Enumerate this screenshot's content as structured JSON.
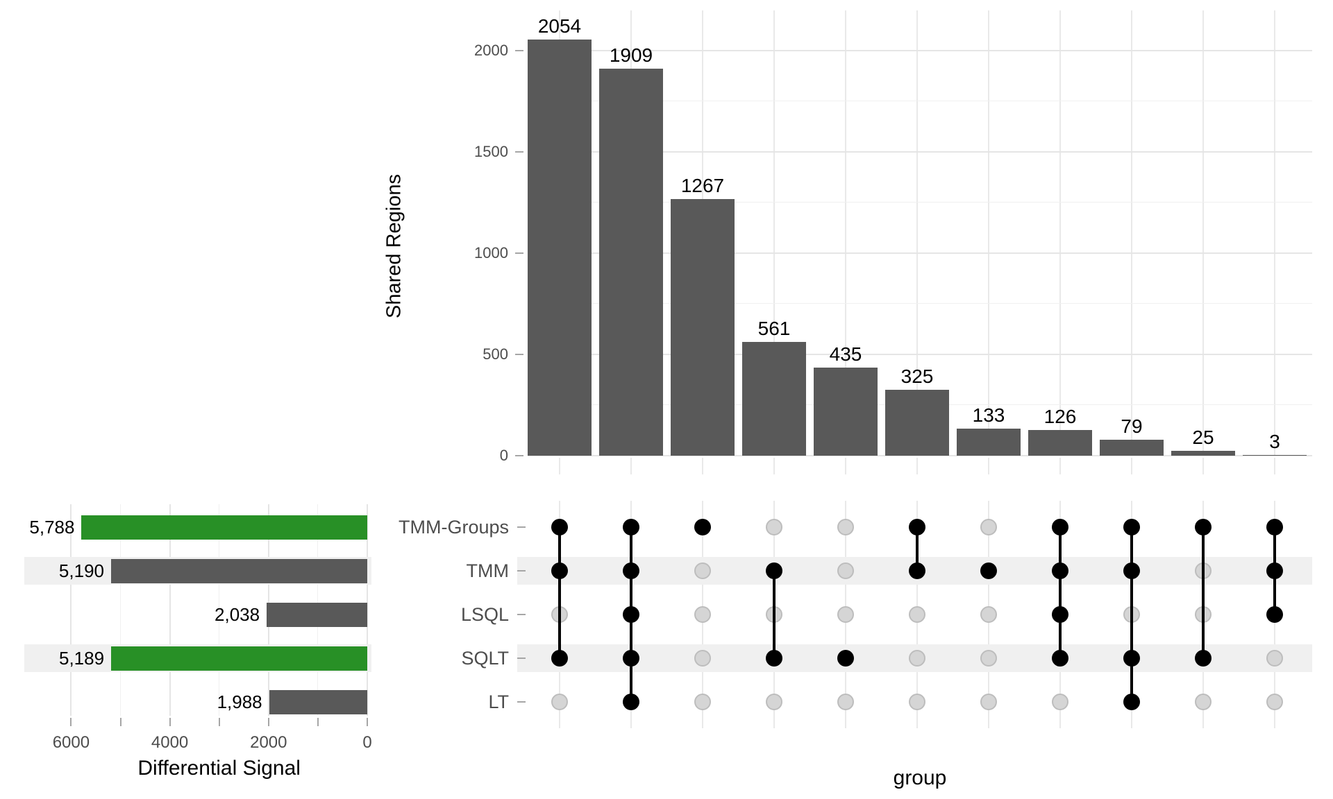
{
  "figure": {
    "kind": "UpSet plot of shared genomic regions between normalization groups"
  },
  "colors": {
    "bar_dark": "#595959",
    "bar_green": "#289026",
    "dot_on": "#000000",
    "dot_off": "#D5D5D5",
    "dot_off_border": "#BDBDBD",
    "stripe": "#F0F0F0",
    "grid_major": "#E5E5E5",
    "grid_minor": "#F0F0F0",
    "grid_column": "#E9E9E9",
    "tick_mark": "#A6A6A6",
    "axis_text": "#4D4D4D",
    "label_text": "#000000",
    "background": "#FFFFFF"
  },
  "chart_data": {
    "type": "bar",
    "subtype": "upset",
    "intersection_bars": {
      "ylabel": "Shared Regions",
      "xlabel": "group",
      "values": [
        2054,
        1909,
        1267,
        561,
        435,
        325,
        133,
        126,
        79,
        25,
        3
      ],
      "bar_labels": [
        "2054",
        "1909",
        "1267",
        "561",
        "435",
        "325",
        "133",
        "126",
        "79",
        "25",
        "3"
      ],
      "memberships": [
        [
          "TMM-Groups",
          "TMM",
          "SQLT"
        ],
        [
          "TMM-Groups",
          "TMM",
          "LSQL",
          "SQLT",
          "LT"
        ],
        [
          "TMM-Groups"
        ],
        [
          "TMM",
          "SQLT"
        ],
        [
          "SQLT"
        ],
        [
          "TMM-Groups",
          "TMM"
        ],
        [
          "TMM"
        ],
        [
          "TMM-Groups",
          "TMM",
          "LSQL",
          "SQLT"
        ],
        [
          "TMM-Groups",
          "TMM",
          "SQLT",
          "LT"
        ],
        [
          "TMM-Groups",
          "SQLT"
        ],
        [
          "TMM-Groups",
          "TMM",
          "LSQL"
        ]
      ],
      "ylim": [
        0,
        2100
      ],
      "yticks": [
        0,
        500,
        1000,
        1500,
        2000
      ],
      "ytick_labels": [
        "0",
        "500",
        "1000",
        "1500",
        "2000"
      ],
      "grid": true,
      "bar_color": "#595959"
    },
    "set_size_bars": {
      "xlabel": "Differential Signal",
      "sets": [
        "TMM-Groups",
        "TMM",
        "LSQL",
        "SQLT",
        "LT"
      ],
      "values": [
        5788,
        5190,
        2038,
        5189,
        1988
      ],
      "value_labels": [
        "5,788",
        "5,190",
        "2,038",
        "5,189",
        "1,988"
      ],
      "bar_colors": [
        "#289026",
        "#595959",
        "#595959",
        "#289026",
        "#595959"
      ],
      "xlim": [
        6000,
        0
      ],
      "xticks": [
        6000,
        5000,
        4000,
        3000,
        2000,
        1000,
        0
      ],
      "xtick_labels": [
        "6000",
        "",
        "4000",
        "",
        "2000",
        "",
        "0"
      ],
      "axis_reversed": true
    },
    "matrix": {
      "rows": [
        "TMM-Groups",
        "TMM",
        "LSQL",
        "SQLT",
        "LT"
      ],
      "striped_rows": [
        "TMM",
        "SQLT"
      ],
      "legend": "black dot = set is part of intersection, gray dot = not part"
    }
  }
}
